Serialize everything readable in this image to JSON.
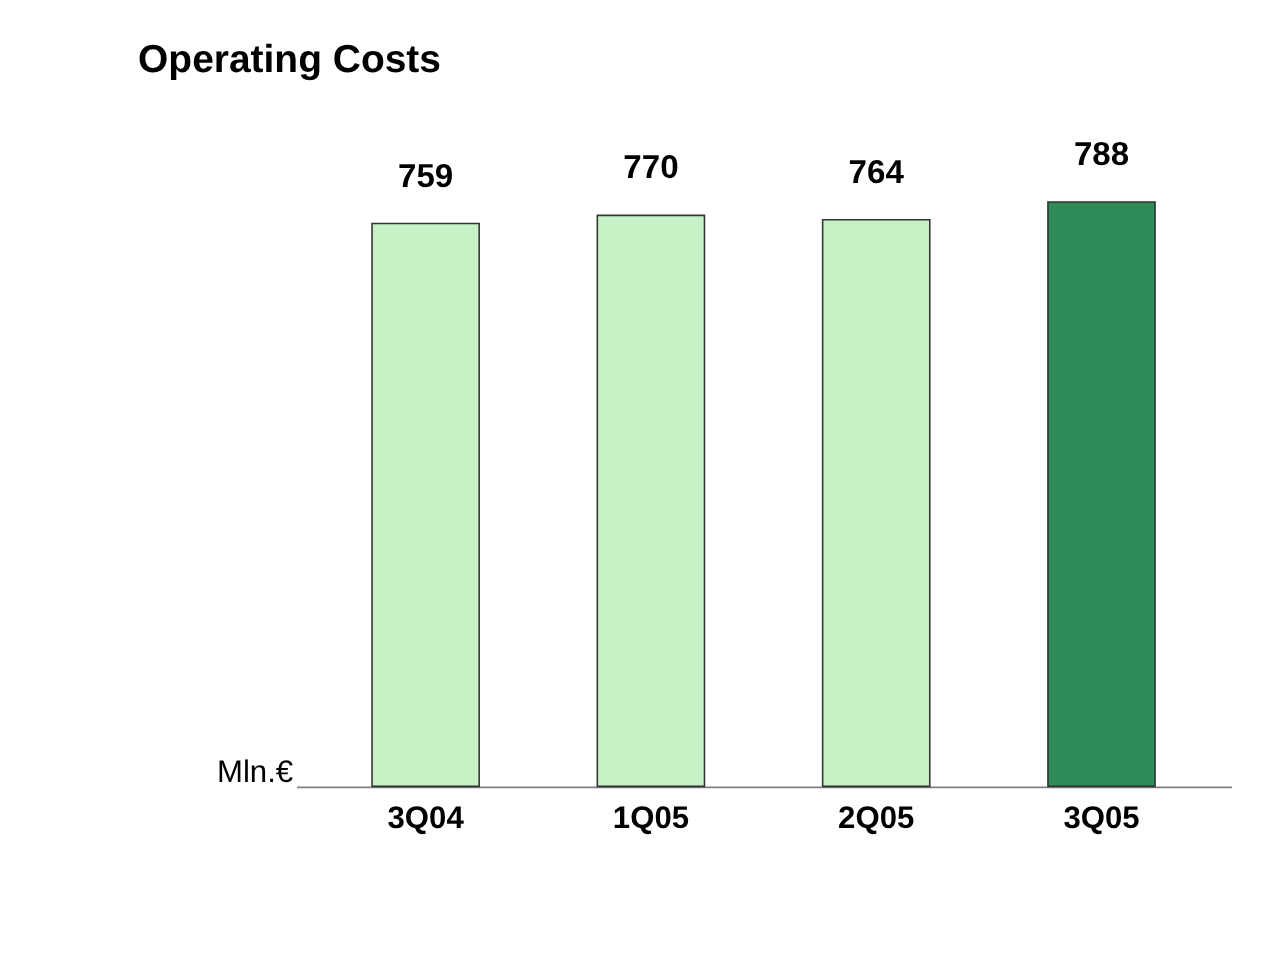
{
  "chart_data": {
    "type": "bar",
    "title": "Operating Costs",
    "ylabel": "Mln.€",
    "categories": [
      "3Q04",
      "1Q05",
      "2Q05",
      "3Q05"
    ],
    "values": [
      759,
      770,
      764,
      788
    ],
    "colors": [
      "#c6f2c6",
      "#c6f2c6",
      "#c6f2c6",
      "#2e8b57"
    ],
    "data_labels": true,
    "grid": false,
    "tick_labels": "x"
  }
}
